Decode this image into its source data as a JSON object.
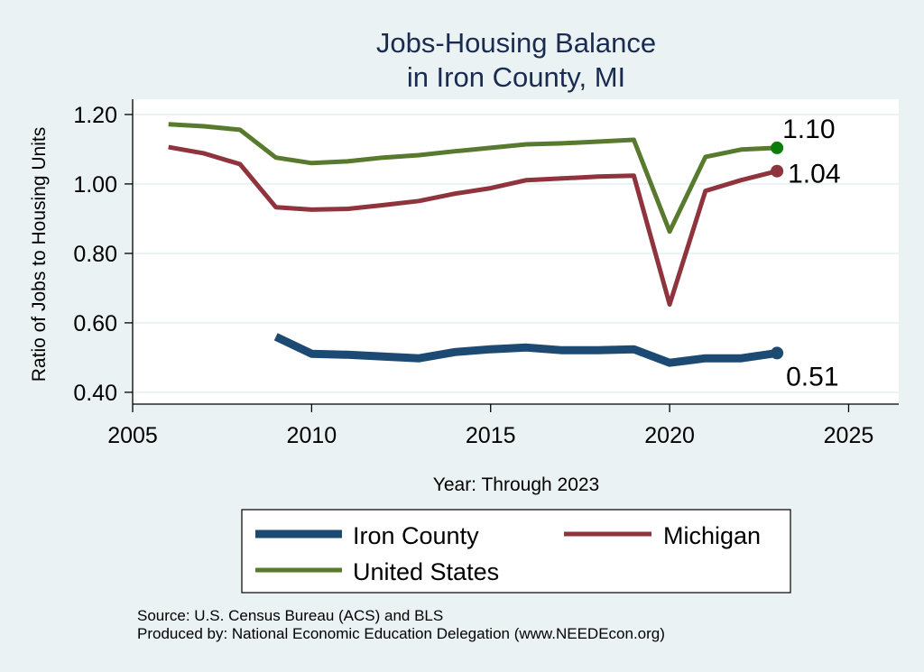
{
  "chart_data": {
    "type": "line",
    "title": [
      "Jobs-Housing Balance",
      "in Iron County, MI"
    ],
    "xlabel": "Year: Through 2023",
    "ylabel": "Ratio of Jobs to Housing Units",
    "xlim": [
      2005,
      2026.4
    ],
    "ylim": [
      0.366,
      1.244
    ],
    "xticks": [
      2005,
      2010,
      2015,
      2020,
      2025
    ],
    "xtick_labels": [
      "2005",
      "2010",
      "2015",
      "2020",
      "2025"
    ],
    "yticks": [
      0.4,
      0.6,
      0.8,
      1.0,
      1.2
    ],
    "ytick_labels": [
      "0.40",
      "0.60",
      "0.80",
      "1.00",
      "1.20"
    ],
    "grid": true,
    "legend_position": "bottom",
    "series": [
      {
        "name": "Iron County",
        "color": "#1c4a72",
        "marker_color": "#1c4a72",
        "end_label": "0.51",
        "x": [
          2009,
          2010,
          2011,
          2012,
          2013,
          2014,
          2015,
          2016,
          2017,
          2018,
          2019,
          2020,
          2021,
          2022,
          2023
        ],
        "values": [
          0.56,
          0.511,
          0.508,
          0.503,
          0.498,
          0.516,
          0.524,
          0.529,
          0.521,
          0.521,
          0.524,
          0.485,
          0.498,
          0.498,
          0.513
        ]
      },
      {
        "name": "Michigan",
        "color": "#8f333d",
        "marker_color": "#8f333d",
        "end_label": "1.04",
        "x": [
          2006,
          2007,
          2008,
          2009,
          2010,
          2011,
          2012,
          2013,
          2014,
          2015,
          2016,
          2017,
          2018,
          2019,
          2020,
          2021,
          2022,
          2023
        ],
        "values": [
          1.106,
          1.088,
          1.057,
          0.933,
          0.926,
          0.928,
          0.939,
          0.951,
          0.972,
          0.988,
          1.011,
          1.016,
          1.021,
          1.024,
          0.653,
          0.98,
          1.011,
          1.037
        ]
      },
      {
        "name": "United States",
        "color": "#577a2e",
        "marker_color": "#0a7d0a",
        "end_label": "1.10",
        "x": [
          2006,
          2007,
          2008,
          2009,
          2010,
          2011,
          2012,
          2013,
          2014,
          2015,
          2016,
          2017,
          2018,
          2019,
          2020,
          2021,
          2022,
          2023
        ],
        "values": [
          1.172,
          1.166,
          1.156,
          1.076,
          1.06,
          1.065,
          1.076,
          1.083,
          1.094,
          1.104,
          1.114,
          1.117,
          1.122,
          1.127,
          0.863,
          1.078,
          1.099,
          1.104
        ]
      }
    ],
    "notes": [
      "Source: U.S. Census Bureau (ACS) and BLS",
      "Produced by: National Economic Education Delegation (www.NEEDEcon.org)"
    ]
  }
}
